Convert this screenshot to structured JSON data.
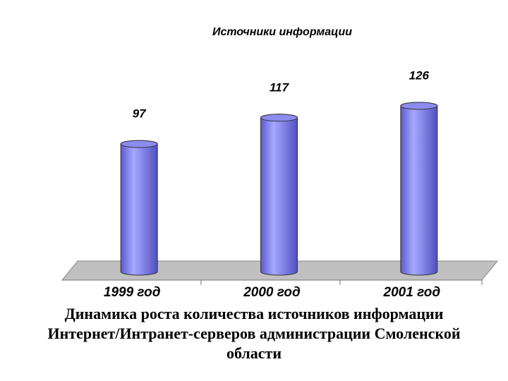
{
  "chart_data": {
    "type": "bar",
    "title": "Источники информации",
    "categories": [
      "1999 год",
      "2000 год",
      "2001 год"
    ],
    "values": [
      97,
      117,
      126
    ],
    "color": "#8a8af0"
  },
  "caption": [
    "Динамика роста количества источников информации",
    "Интернет/Интранет-серверов администрации Смоленской",
    "области"
  ]
}
